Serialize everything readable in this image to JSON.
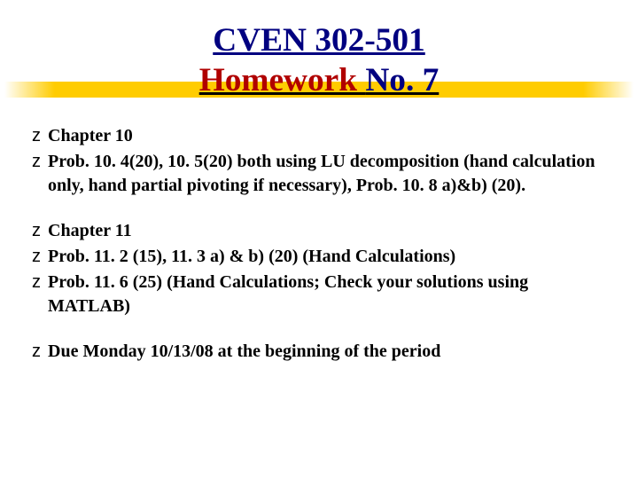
{
  "title": {
    "line1": "CVEN 302-501",
    "line2_prefix": "Homework ",
    "line2_suffix": " No. 7",
    "line1_color": "#000080",
    "line2_prefix_color": "#b00000",
    "line2_suffix_color": "#000080",
    "fontsize_pt": 28,
    "highlight_color": "#ffcc00"
  },
  "bullet": {
    "glyph": "z",
    "color": "#000000",
    "fontsize_pt": 20
  },
  "body_fontsize_pt": 20,
  "section1": {
    "items": [
      "Chapter 10",
      "Prob. 10. 4(20), 10. 5(20) both using LU decomposition (hand calculation only, hand partial pivoting if necessary), Prob. 10. 8 a)&b) (20)."
    ]
  },
  "section2": {
    "items": [
      "Chapter 11",
      "Prob. 11. 2 (15), 11. 3 a) & b) (20) (Hand Calculations)",
      "Prob. 11. 6 (25) (Hand Calculations; Check your solutions using MATLAB)"
    ]
  },
  "due": {
    "text": "Due Monday 10/13/08 at the beginning of the period"
  },
  "background_color": "#ffffff"
}
